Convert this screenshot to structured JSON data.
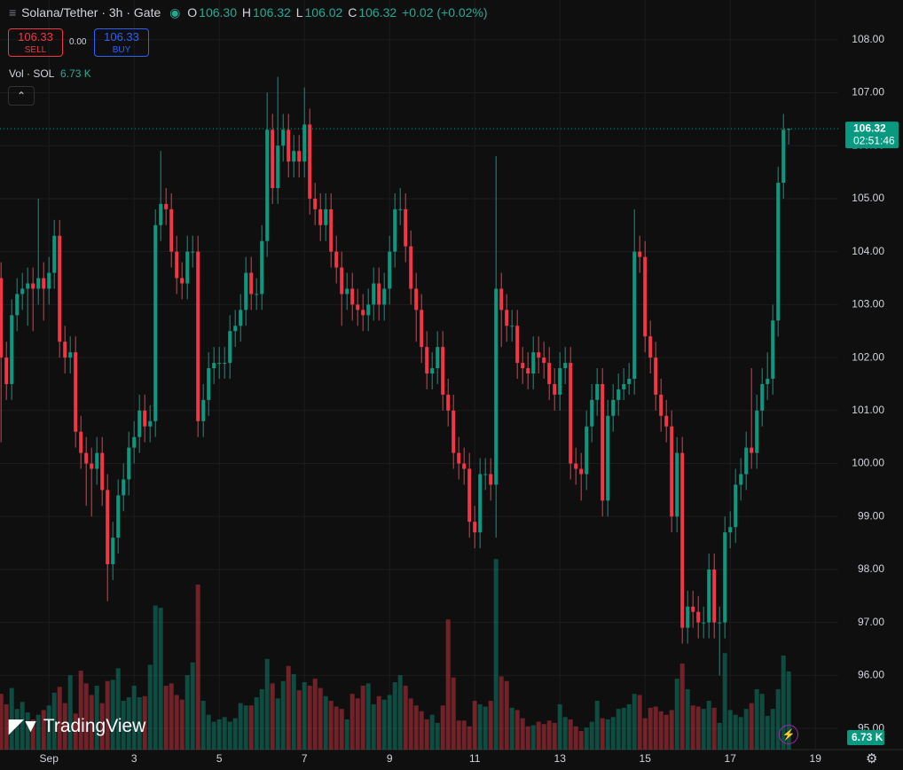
{
  "header": {
    "symbol": "Solana/Tether · 3h · Gate",
    "o_label": "O",
    "o": "106.30",
    "h_label": "H",
    "h": "106.32",
    "l_label": "L",
    "l": "106.02",
    "c_label": "C",
    "c": "106.32",
    "change": "+0.02 (+0.02%)"
  },
  "trade": {
    "sell_price": "106.33",
    "sell": "SELL",
    "spread": "0.00",
    "buy_price": "106.33",
    "buy": "BUY"
  },
  "volume_legend": {
    "label": "Vol · SOL",
    "value": "6.73 K"
  },
  "price_tag": {
    "time": "02:51:46"
  },
  "volume_tag": "6.73 K",
  "logo": "TradingView",
  "chart_data": {
    "type": "candlestick",
    "open": [
      103.5,
      102.0,
      101.5,
      102.8,
      103.2,
      103.3,
      103.4,
      103.3,
      103.5,
      103.3,
      103.6,
      104.3,
      102.3,
      102.0,
      102.1,
      100.6,
      100.2,
      100.0,
      99.9,
      100.2,
      99.5,
      98.1,
      98.6,
      99.4,
      99.7,
      100.3,
      100.5,
      101.0,
      100.7,
      100.8,
      104.5,
      104.9,
      104.8,
      104.0,
      103.5,
      103.4,
      104.0,
      104.0,
      100.8,
      101.2,
      101.8,
      101.9,
      101.9,
      101.9,
      102.5,
      102.6,
      102.9,
      103.6,
      103.2,
      103.2,
      104.2,
      106.3,
      105.2,
      106.0,
      106.3,
      105.7,
      105.9,
      105.7,
      106.4,
      105.0,
      104.8,
      104.5,
      104.8,
      104.0,
      103.7,
      103.2,
      103.3,
      103.0,
      102.9,
      102.8,
      103.0,
      103.4,
      103.0,
      103.3,
      104.0,
      104.8,
      104.8,
      104.1,
      103.3,
      102.9,
      102.2,
      101.7,
      101.8,
      102.2,
      101.3,
      101.0,
      100.2,
      100.0,
      99.9,
      98.9,
      98.7,
      99.8,
      99.8,
      99.6,
      103.3,
      102.9,
      102.6,
      102.6,
      101.9,
      101.8,
      101.7,
      102.1,
      102.0,
      101.9,
      101.5,
      101.3,
      101.8,
      101.9,
      100.0,
      99.9,
      99.8,
      100.7,
      101.2,
      101.5,
      99.3,
      100.9,
      101.2,
      101.4,
      101.5,
      101.6,
      104.0,
      103.9,
      102.4,
      102.0,
      101.3,
      100.9,
      100.7,
      99.0,
      100.2,
      96.9,
      97.3,
      97.2,
      97.0,
      97.0,
      98.0,
      97.0,
      97.0,
      98.7,
      98.8,
      99.6,
      99.8,
      100.3,
      100.2,
      101.0,
      101.5,
      101.6,
      102.7,
      105.3,
      106.3
    ],
    "high": [
      103.8,
      102.3,
      103.1,
      103.5,
      103.6,
      103.7,
      103.7,
      105.0,
      103.8,
      103.9,
      104.6,
      104.6,
      102.6,
      102.4,
      102.4,
      100.9,
      100.5,
      100.3,
      100.5,
      100.5,
      99.8,
      98.9,
      99.7,
      100.0,
      100.6,
      100.8,
      101.3,
      101.3,
      101.1,
      104.8,
      105.9,
      105.2,
      105.1,
      104.3,
      103.8,
      104.3,
      104.3,
      104.3,
      101.5,
      102.1,
      102.2,
      102.2,
      102.2,
      102.8,
      102.9,
      103.2,
      103.9,
      103.9,
      103.5,
      104.5,
      107.0,
      106.6,
      107.3,
      106.6,
      106.6,
      106.2,
      106.2,
      107.1,
      106.7,
      105.3,
      105.1,
      105.1,
      105.1,
      104.3,
      104.0,
      103.6,
      103.6,
      103.3,
      103.2,
      103.3,
      103.7,
      103.7,
      103.6,
      104.3,
      105.1,
      105.2,
      105.1,
      104.4,
      103.6,
      103.2,
      102.5,
      102.1,
      102.5,
      102.5,
      101.6,
      101.3,
      100.5,
      100.3,
      100.2,
      99.2,
      100.1,
      100.1,
      100.1,
      105.8,
      103.6,
      103.2,
      102.9,
      102.9,
      102.2,
      102.1,
      102.4,
      102.4,
      102.3,
      102.2,
      101.8,
      102.1,
      102.2,
      102.2,
      100.3,
      100.2,
      101.0,
      101.5,
      101.8,
      101.8,
      101.2,
      101.5,
      101.7,
      101.8,
      101.9,
      104.8,
      104.3,
      104.2,
      102.7,
      102.3,
      101.6,
      101.2,
      101.0,
      100.5,
      100.5,
      97.6,
      97.6,
      97.5,
      97.3,
      98.3,
      98.3,
      97.3,
      99.0,
      99.1,
      99.9,
      100.1,
      100.6,
      101.8,
      101.3,
      101.8,
      102.1,
      103.0,
      105.6,
      106.6,
      106.32
    ],
    "low": [
      100.4,
      101.2,
      101.2,
      102.5,
      102.9,
      102.6,
      102.5,
      103.0,
      102.7,
      103.0,
      103.3,
      102.0,
      101.7,
      101.7,
      100.3,
      99.9,
      99.2,
      99.0,
      99.6,
      99.2,
      97.4,
      97.8,
      98.3,
      99.1,
      99.4,
      100.0,
      100.2,
      100.4,
      100.4,
      100.5,
      104.2,
      104.5,
      103.7,
      103.2,
      103.1,
      103.1,
      103.7,
      100.5,
      100.5,
      100.9,
      101.5,
      101.6,
      101.6,
      101.6,
      102.2,
      102.3,
      102.6,
      102.9,
      102.9,
      102.9,
      103.9,
      104.9,
      104.9,
      105.7,
      105.4,
      105.4,
      105.4,
      105.4,
      104.7,
      104.5,
      104.2,
      104.2,
      103.7,
      103.4,
      102.6,
      102.9,
      102.7,
      102.6,
      102.5,
      102.5,
      102.7,
      102.7,
      102.7,
      103.0,
      103.7,
      104.5,
      103.8,
      103.0,
      102.3,
      101.9,
      101.4,
      101.4,
      101.5,
      101.0,
      100.7,
      99.9,
      99.7,
      99.6,
      98.6,
      98.4,
      98.4,
      99.5,
      99.3,
      98.6,
      102.2,
      102.3,
      102.3,
      101.6,
      101.5,
      101.4,
      101.4,
      101.7,
      101.6,
      101.2,
      101.0,
      101.0,
      101.5,
      99.7,
      99.6,
      99.3,
      99.5,
      100.4,
      100.9,
      99.0,
      99.0,
      100.6,
      100.9,
      101.2,
      101.3,
      101.3,
      103.6,
      102.1,
      101.7,
      101.0,
      100.6,
      100.4,
      98.7,
      98.7,
      96.6,
      96.6,
      96.9,
      96.7,
      96.7,
      96.7,
      96.7,
      96.0,
      96.7,
      98.4,
      98.5,
      99.3,
      99.5,
      99.9,
      99.9,
      100.7,
      101.2,
      101.3,
      102.4,
      105.0,
      106.02
    ],
    "close": [
      102.0,
      101.5,
      102.8,
      103.2,
      103.3,
      103.4,
      103.3,
      103.5,
      103.3,
      103.6,
      104.3,
      102.3,
      102.0,
      102.1,
      100.6,
      100.2,
      100.0,
      99.9,
      100.2,
      99.5,
      98.1,
      98.6,
      99.4,
      99.7,
      100.3,
      100.5,
      101.0,
      100.7,
      100.8,
      104.5,
      104.9,
      104.8,
      104.0,
      103.5,
      103.4,
      104.0,
      104.0,
      100.8,
      101.2,
      101.8,
      101.9,
      101.9,
      101.9,
      102.5,
      102.6,
      102.9,
      103.6,
      103.2,
      103.2,
      104.2,
      106.3,
      105.2,
      106.0,
      106.3,
      105.7,
      105.9,
      105.7,
      106.4,
      105.0,
      104.8,
      104.5,
      104.8,
      104.0,
      103.7,
      103.2,
      103.3,
      103.0,
      102.9,
      102.8,
      103.0,
      103.4,
      103.0,
      103.3,
      104.0,
      104.8,
      104.8,
      104.1,
      103.3,
      102.9,
      102.2,
      101.7,
      101.8,
      102.2,
      101.3,
      101.0,
      100.2,
      100.0,
      99.9,
      98.9,
      98.7,
      99.8,
      99.8,
      99.6,
      103.3,
      102.9,
      102.6,
      102.6,
      101.9,
      101.8,
      101.7,
      102.1,
      102.0,
      101.9,
      101.5,
      101.3,
      101.8,
      101.9,
      100.0,
      99.9,
      99.8,
      100.7,
      101.2,
      101.5,
      99.3,
      100.9,
      101.2,
      101.4,
      101.5,
      101.6,
      104.0,
      103.9,
      102.4,
      102.0,
      101.3,
      100.9,
      100.7,
      99.0,
      100.2,
      96.9,
      97.3,
      97.2,
      97.0,
      97.0,
      98.0,
      97.0,
      97.0,
      98.7,
      98.8,
      99.6,
      99.8,
      100.3,
      100.2,
      101.0,
      101.5,
      101.6,
      102.7,
      105.3,
      106.3,
      106.32
    ],
    "volume": [
      4.8,
      3.9,
      5.3,
      3.5,
      4.1,
      3.2,
      2.6,
      3.0,
      3.4,
      3.8,
      4.9,
      5.4,
      4.0,
      6.4,
      3.1,
      6.8,
      5.7,
      4.7,
      5.5,
      4.0,
      5.9,
      6.0,
      7.0,
      4.2,
      4.5,
      5.5,
      4.5,
      4.6,
      7.3,
      12.4,
      12.2,
      5.5,
      5.7,
      4.7,
      4.3,
      6.4,
      7.5,
      14.2,
      4.2,
      3.0,
      2.4,
      2.6,
      2.8,
      2.4,
      2.7,
      4.0,
      3.8,
      3.8,
      4.5,
      5.2,
      7.8,
      5.7,
      4.4,
      5.9,
      7.2,
      6.5,
      5.1,
      5.8,
      5.5,
      6.1,
      5.3,
      4.6,
      4.2,
      3.7,
      3.5,
      2.6,
      4.8,
      4.4,
      5.5,
      5.7,
      3.9,
      4.6,
      4.3,
      4.7,
      5.8,
      6.4,
      5.5,
      4.4,
      3.8,
      3.3,
      2.6,
      3.0,
      2.3,
      3.8,
      11.2,
      6.2,
      2.5,
      2.5,
      2.0,
      4.2,
      3.9,
      3.7,
      4.2,
      16.4,
      6.3,
      5.9,
      3.6,
      3.4,
      2.7,
      2.0,
      2.1,
      2.4,
      2.2,
      2.5,
      2.3,
      3.9,
      2.8,
      2.6,
      2.0,
      1.6,
      1.9,
      2.4,
      4.2,
      2.7,
      2.6,
      2.8,
      3.5,
      3.6,
      3.9,
      4.8,
      4.7,
      2.7,
      3.6,
      3.7,
      3.3,
      3.0,
      3.4,
      6.1,
      7.4,
      5.2,
      3.8,
      3.7,
      3.5,
      4.2,
      3.6,
      2.3,
      8.3,
      3.4,
      3.0,
      2.8,
      3.5,
      4.0,
      5.2,
      4.8,
      2.9,
      3.5,
      5.2,
      8.1,
      6.73
    ],
    "up_color": "#089981",
    "down_color": "#f23645",
    "ylim": [
      94.6,
      108.75
    ],
    "yticks": [
      {
        "value": 95,
        "label": "95.00"
      },
      {
        "value": 96,
        "label": "96.00"
      },
      {
        "value": 97,
        "label": "97.00"
      },
      {
        "value": 98,
        "label": "98.00"
      },
      {
        "value": 99,
        "label": "99.00"
      },
      {
        "value": 100,
        "label": "100.00"
      },
      {
        "value": 101,
        "label": "101.00"
      },
      {
        "value": 102,
        "label": "102.00"
      },
      {
        "value": 103,
        "label": "103.00"
      },
      {
        "value": 104,
        "label": "104.00"
      },
      {
        "value": 105,
        "label": "105.00"
      },
      {
        "value": 106,
        "label": "106.00"
      },
      {
        "value": 107,
        "label": "107.00"
      },
      {
        "value": 108,
        "label": "108.00"
      }
    ],
    "xlim": [
      -0.2,
      157.3
    ],
    "xticks": [
      {
        "value": 9,
        "label": "Sep"
      },
      {
        "value": 25,
        "label": "3"
      },
      {
        "value": 41,
        "label": "5"
      },
      {
        "value": 57,
        "label": "7"
      },
      {
        "value": 73,
        "label": "9"
      },
      {
        "value": 89,
        "label": "11"
      },
      {
        "value": 105,
        "label": "13"
      },
      {
        "value": 121,
        "label": "15"
      },
      {
        "value": 137,
        "label": "17"
      },
      {
        "value": 153,
        "label": "19"
      }
    ],
    "grid": true
  }
}
